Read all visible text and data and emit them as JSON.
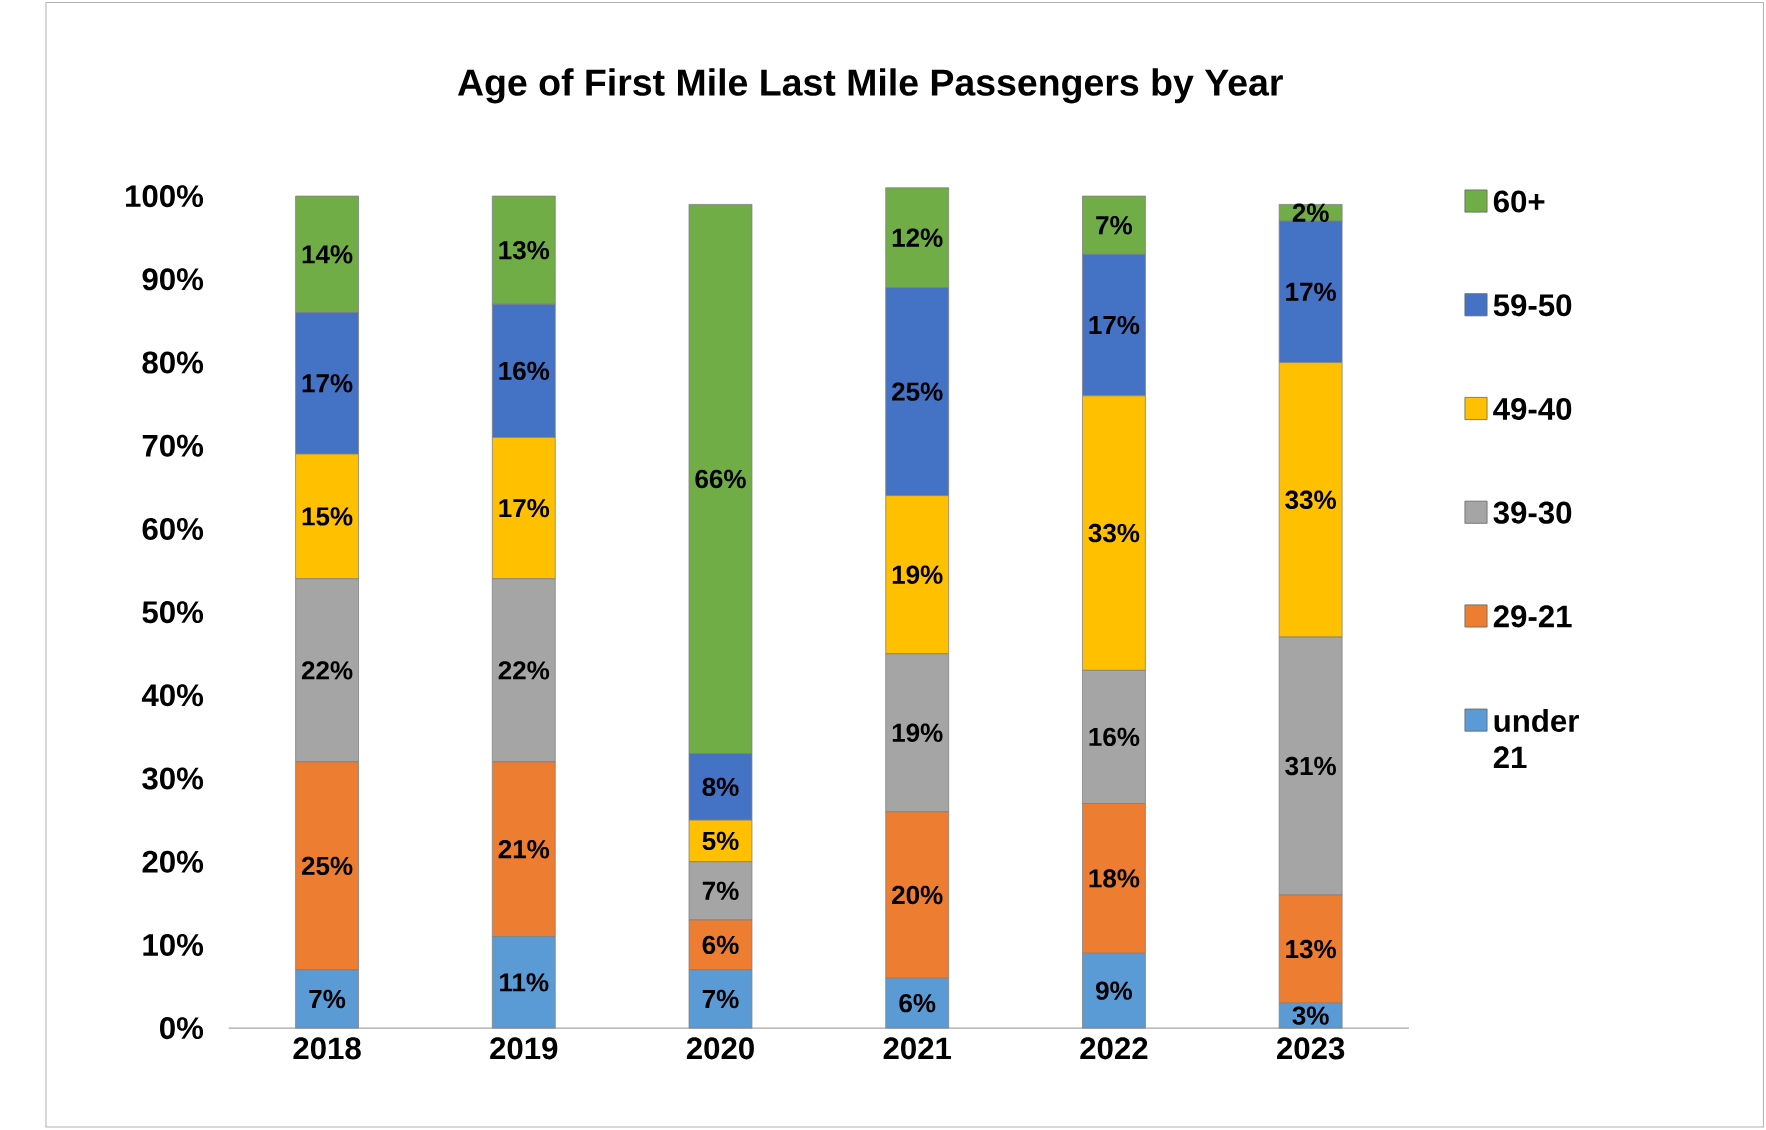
{
  "chart_data": {
    "type": "bar",
    "stacked": true,
    "title": "Age of First Mile Last Mile Passengers by Year",
    "categories": [
      "2018",
      "2019",
      "2020",
      "2021",
      "2022",
      "2023"
    ],
    "series": [
      {
        "name": "under 21",
        "color": "#5b9bd5",
        "values": [
          7,
          11,
          7,
          6,
          9,
          3
        ],
        "value_labels": [
          "7%",
          "11%",
          "7%",
          "6%",
          "9%",
          "3%"
        ]
      },
      {
        "name": "29-21",
        "color": "#ed7d31",
        "values": [
          25,
          21,
          6,
          20,
          18,
          13
        ],
        "value_labels": [
          "25%",
          "21%",
          "6%",
          "20%",
          "18%",
          "13%"
        ]
      },
      {
        "name": "39-30",
        "color": "#a5a5a5",
        "values": [
          22,
          22,
          7,
          19,
          16,
          31
        ],
        "value_labels": [
          "22%",
          "22%",
          "7%",
          "19%",
          "16%",
          "31%"
        ]
      },
      {
        "name": "49-40",
        "color": "#ffc000",
        "values": [
          15,
          17,
          5,
          19,
          33,
          33
        ],
        "value_labels": [
          "15%",
          "17%",
          "5%",
          "19%",
          "33%",
          "33%"
        ]
      },
      {
        "name": "59-50",
        "color": "#4472c4",
        "values": [
          17,
          16,
          8,
          25,
          17,
          17
        ],
        "value_labels": [
          "17%",
          "16%",
          "8%",
          "25%",
          "17%",
          "17%"
        ]
      },
      {
        "name": "60+",
        "color": "#70ad47",
        "values": [
          14,
          13,
          66,
          12,
          7,
          2
        ],
        "value_labels": [
          "14%",
          "13%",
          "66%",
          "12%",
          "7%",
          "2%"
        ]
      }
    ],
    "ylim": [
      0,
      102
    ],
    "yticks": [
      {
        "value": 0,
        "label": "0%"
      },
      {
        "value": 10,
        "label": "10%"
      },
      {
        "value": 20,
        "label": "20%"
      },
      {
        "value": 30,
        "label": "30%"
      },
      {
        "value": 40,
        "label": "40%"
      },
      {
        "value": 50,
        "label": "50%"
      },
      {
        "value": 60,
        "label": "60%"
      },
      {
        "value": 70,
        "label": "70%"
      },
      {
        "value": 80,
        "label": "80%"
      },
      {
        "value": 90,
        "label": "90%"
      },
      {
        "value": 100,
        "label": "100%"
      }
    ],
    "legend": "right"
  }
}
